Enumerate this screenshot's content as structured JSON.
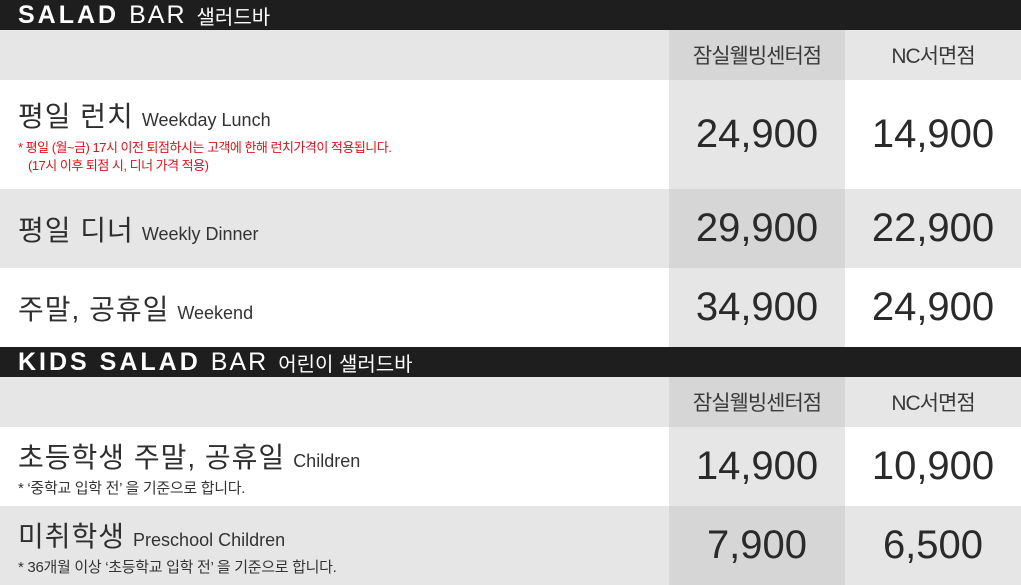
{
  "adult": {
    "header": {
      "en_bold": "SALAD",
      "en_light": "BAR",
      "ko": "샐러드바"
    },
    "columns": {
      "jamsil": "잠실웰빙센터점",
      "nc": "NC서면점"
    },
    "rows": [
      {
        "ko": "평일 런치",
        "en": "Weekday Lunch",
        "note1": "* 평일 (월~금) 17시 이전 퇴점하시는 고객에 한해 런치가격이 적용됩니다.",
        "note2": "(17시 이후 퇴점 시, 디너 가격 적용)",
        "jamsil": "24,900",
        "nc": "14,900"
      },
      {
        "ko": "평일 디너",
        "en": "Weekly Dinner",
        "jamsil": "29,900",
        "nc": "22,900"
      },
      {
        "ko": "주말, 공휴일",
        "en": "Weekend",
        "jamsil": "34,900",
        "nc": "24,900"
      }
    ]
  },
  "kids": {
    "header": {
      "en_bold": "KIDS SALAD",
      "en_light": "BAR",
      "ko": "어린이 샐러드바"
    },
    "columns": {
      "jamsil": "잠실웰빙센터점",
      "nc": "NC서면점"
    },
    "rows": [
      {
        "ko": "초등학생 주말, 공휴일",
        "en": "Children",
        "note": "* ‘중학교 입학 전’ 을 기준으로 합니다.",
        "jamsil": "14,900",
        "nc": "10,900"
      },
      {
        "ko": "미취학생",
        "en": "Preschool Children",
        "note": "* 36개월 이상 ‘초등학교 입학 전’ 을 기준으로 합니다.",
        "jamsil": "7,900",
        "nc": "6,500"
      }
    ]
  }
}
